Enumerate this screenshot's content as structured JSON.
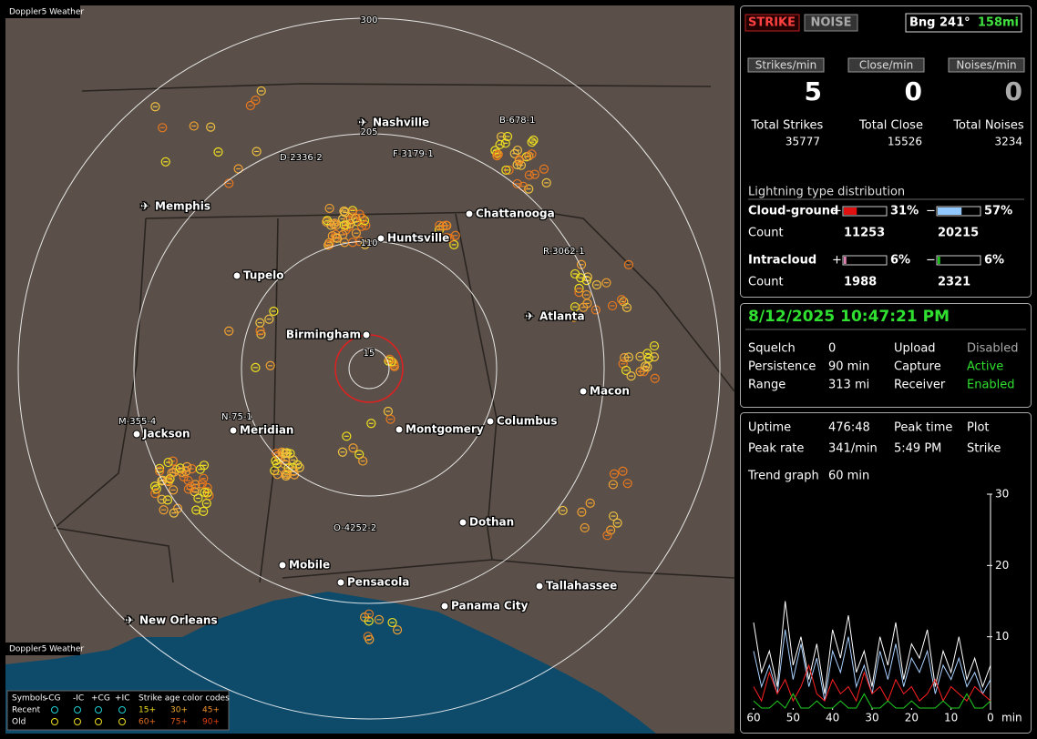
{
  "header": {
    "app_title": "Doppler5 Weather"
  },
  "map": {
    "ring_labels": [
      15,
      110,
      205,
      300
    ],
    "cities": [
      "Nashville",
      "Memphis",
      "Chattanooga",
      "Huntsville",
      "Tupelo",
      "Atlanta",
      "Birmingham",
      "Macon",
      "Montgomery",
      "Columbus",
      "Jackson",
      "Meridian",
      "Dothan",
      "Mobile",
      "Pensacola",
      "Tallahassee",
      "Panama City",
      "New Orleans"
    ],
    "storm_labels": [
      "D-2336-2",
      "F-3179-1",
      "B-678-1",
      "R-3062-1",
      "M-355-4",
      "N-75-1",
      "O-4252-2"
    ],
    "footer": "Doppler5 Weather",
    "legend": {
      "symbols_label": "Symbols",
      "symbols": [
        "-CG",
        "-IC",
        "+CG",
        "+IC"
      ],
      "age_title": "Strike age color codes",
      "rows": [
        "Recent",
        "Old"
      ],
      "ages": [
        "15+",
        "30+",
        "45+",
        "60+",
        "75+",
        "90+"
      ]
    }
  },
  "status": {
    "strike_button": "STRIKE",
    "noise_button": "NOISE",
    "bearing": "Bng 241°",
    "distance": "158mi",
    "rates": [
      {
        "label": "Strikes/min",
        "value": 5
      },
      {
        "label": "Close/min",
        "value": 0
      },
      {
        "label": "Noises/min",
        "value": 0
      }
    ],
    "totals": [
      {
        "label": "Total Strikes",
        "value": 35777
      },
      {
        "label": "Total Close",
        "value": 15526
      },
      {
        "label": "Total Noises",
        "value": 3234
      }
    ],
    "distribution": {
      "title": "Lightning type distribution",
      "count_label": "Count",
      "rows": [
        {
          "label": "Cloud-ground",
          "pos_sign": "+",
          "pos_pct": 31,
          "pos_pct_label": "31%",
          "neg_sign": "−",
          "neg_pct": 57,
          "neg_pct_label": "57%",
          "pos_count": 11253,
          "neg_count": 20215
        },
        {
          "label": "Intracloud",
          "pos_sign": "+",
          "pos_pct": 6,
          "pos_pct_label": "6%",
          "neg_sign": "−",
          "neg_pct": 6,
          "neg_pct_label": "6%",
          "pos_count": 1988,
          "neg_count": 2321
        }
      ]
    }
  },
  "settings": {
    "datetime": "8/12/2025 10:47:21 PM",
    "items": [
      {
        "label": "Squelch",
        "value": 0
      },
      {
        "label": "Upload",
        "value": "Disabled"
      },
      {
        "label": "Persistence",
        "value": "90 min"
      },
      {
        "label": "Capture",
        "value": "Active"
      },
      {
        "label": "Range",
        "value": "313 mi"
      },
      {
        "label": "Receiver",
        "value": "Enabled"
      }
    ]
  },
  "stats": {
    "items": [
      {
        "label": "Uptime",
        "value": "476:48"
      },
      {
        "label": "Peak time",
        "value": "5:49 PM"
      },
      {
        "label": "Plot",
        "value": "Strike"
      },
      {
        "label": "Peak rate",
        "value": "341/min"
      },
      {
        "label": "Trend graph",
        "value": "60 min"
      }
    ]
  },
  "chart_data": {
    "type": "line",
    "x_label": "min",
    "x": [
      60,
      58,
      56,
      54,
      52,
      50,
      48,
      46,
      44,
      42,
      40,
      38,
      36,
      34,
      32,
      30,
      28,
      26,
      24,
      22,
      20,
      18,
      16,
      14,
      12,
      10,
      8,
      6,
      4,
      2,
      0
    ],
    "xlim": [
      60,
      0
    ],
    "xticks": [
      60,
      50,
      40,
      30,
      20,
      10,
      0
    ],
    "ylim": [
      0,
      30
    ],
    "yticks": [
      10,
      20,
      30
    ],
    "series": [
      {
        "color": "#ffffff",
        "values": [
          12,
          5,
          8,
          3,
          15,
          6,
          10,
          4,
          9,
          2,
          11,
          7,
          13,
          5,
          8,
          3,
          10,
          6,
          12,
          4,
          9,
          7,
          11,
          3,
          8,
          5,
          10,
          4,
          7,
          3,
          6
        ]
      },
      {
        "color": "#a8d0ff",
        "values": [
          8,
          3,
          6,
          2,
          11,
          4,
          9,
          3,
          7,
          1,
          8,
          5,
          10,
          3,
          6,
          2,
          8,
          4,
          9,
          3,
          7,
          5,
          8,
          2,
          6,
          4,
          7,
          3,
          5,
          2,
          4
        ]
      },
      {
        "color": "#ff2020",
        "values": [
          3,
          1,
          5,
          2,
          4,
          1,
          3,
          6,
          2,
          1,
          4,
          2,
          3,
          1,
          5,
          2,
          3,
          1,
          4,
          2,
          3,
          1,
          2,
          4,
          1,
          3,
          2,
          1,
          3,
          2,
          1
        ]
      },
      {
        "color": "#20d020",
        "values": [
          1,
          0,
          0,
          1,
          0,
          2,
          0,
          0,
          1,
          0,
          0,
          1,
          0,
          0,
          2,
          0,
          0,
          1,
          0,
          0,
          1,
          0,
          0,
          0,
          1,
          0,
          0,
          2,
          0,
          0,
          1
        ]
      }
    ]
  }
}
